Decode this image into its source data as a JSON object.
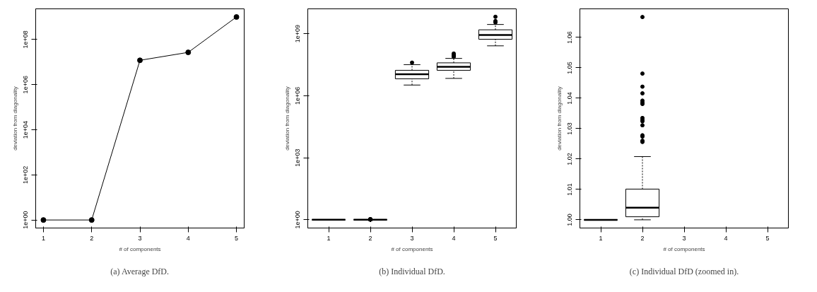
{
  "chart_data": [
    {
      "type": "line",
      "xlabel": "# of components",
      "ylabel": "deviation from diagonality",
      "annotations": [
        "(a) Average DfD."
      ],
      "log": "y",
      "marker": "circle",
      "grid": false,
      "series": [
        {
          "color": "#000000",
          "x": [
            1,
            2,
            3,
            4,
            5
          ],
          "values": [
            1,
            1,
            12000000,
            27000000,
            1000000000
          ]
        }
      ],
      "xlim": [
        0.84,
        5.16
      ],
      "xticks": [
        1,
        2,
        3,
        4,
        5
      ],
      "ylim": [
        0.44,
        2300000000
      ],
      "yticks": [
        {
          "value": 1,
          "label": "1e+00"
        },
        {
          "value": 100,
          "label": "1e+02"
        },
        {
          "value": 10000,
          "label": "1e+04"
        },
        {
          "value": 1000000,
          "label": "1e+06"
        },
        {
          "value": 100000000,
          "label": "1e+08"
        }
      ]
    },
    {
      "type": "box",
      "xlabel": "# of components",
      "ylabel": "deviation from diagonality",
      "annotations": [
        "(b) Individual DfD."
      ],
      "log": "y",
      "grid": false,
      "categories": [
        "1",
        "2",
        "3",
        "4",
        "5"
      ],
      "boxes": [
        {
          "low": 1,
          "q1": 1,
          "median": 1,
          "q3": 1,
          "high": 1
        },
        {
          "low": 1.0,
          "q1": 1.001,
          "median": 1.004,
          "q3": 1.0101,
          "high": 1.0208,
          "outliers": [
            1.0256,
            1.026,
            1.0274,
            1.0278,
            1.0311,
            1.0324,
            1.0329,
            1.0335,
            1.0381,
            1.0386,
            1.0392,
            1.0416,
            1.0438,
            1.0481,
            1.0667
          ]
        },
        {
          "low": 3300000,
          "q1": 6600000,
          "median": 11000000,
          "q3": 17000000,
          "high": 32000000,
          "outliers": [
            40000000
          ]
        },
        {
          "low": 6900000,
          "q1": 17000000,
          "median": 25000000,
          "q3": 39000000,
          "high": 64000000,
          "outliers": [
            76000000,
            85000000,
            95000000,
            110000000
          ]
        },
        {
          "low": 260000000,
          "q1": 540000000,
          "median": 870000000,
          "q3": 1550000000,
          "high": 2800000000,
          "outliers": [
            3500000000,
            4100000000,
            6600000000
          ]
        }
      ],
      "ylim": [
        0.4,
        16000000000
      ],
      "yticks": [
        {
          "value": 1,
          "label": "1e+00"
        },
        {
          "value": 1000,
          "label": "1e+03"
        },
        {
          "value": 1000000,
          "label": "1e+06"
        },
        {
          "value": 1000000000,
          "label": "1e+09"
        }
      ]
    },
    {
      "type": "box",
      "xlabel": "# of components",
      "ylabel": "deviation from diagonality",
      "annotations": [
        "(c) Individual DfD (zoomed in)."
      ],
      "grid": false,
      "categories": [
        "1",
        "2",
        "3",
        "4",
        "5"
      ],
      "boxes": [
        {
          "low": 1,
          "q1": 1,
          "median": 1,
          "q3": 1,
          "high": 1
        },
        {
          "low": 1.0,
          "q1": 1.001,
          "median": 1.004,
          "q3": 1.0101,
          "high": 1.0208,
          "outliers": [
            1.0256,
            1.026,
            1.0274,
            1.0278,
            1.0311,
            1.0324,
            1.0329,
            1.0335,
            1.0381,
            1.0386,
            1.0392,
            1.0416,
            1.0438,
            1.0481,
            1.0667
          ]
        },
        null,
        null,
        null
      ],
      "ylim": [
        0.9973,
        1.0694
      ],
      "yticks": [
        {
          "value": 1.0,
          "label": "1.00"
        },
        {
          "value": 1.01,
          "label": "1.01"
        },
        {
          "value": 1.02,
          "label": "1.02"
        },
        {
          "value": 1.03,
          "label": "1.03"
        },
        {
          "value": 1.04,
          "label": "1.04"
        },
        {
          "value": 1.05,
          "label": "1.05"
        },
        {
          "value": 1.06,
          "label": "1.06"
        }
      ]
    }
  ]
}
